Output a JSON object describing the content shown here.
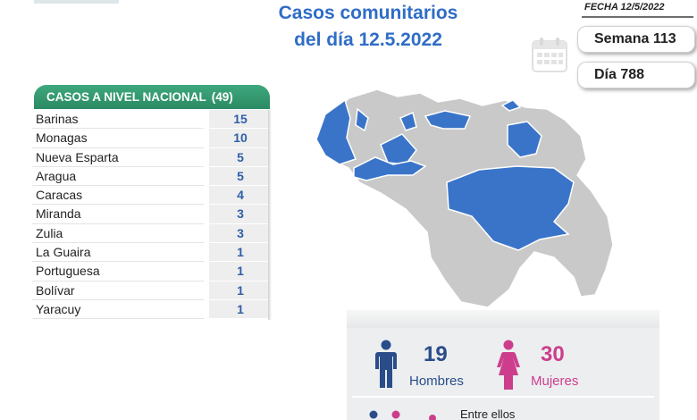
{
  "header": {
    "title_line1": "Casos comunitarios",
    "title_line2": "del día 12.5.2022",
    "fecha": "FECHA 12/5/2022",
    "semana": "Semana 113",
    "dia": "Día 788"
  },
  "table": {
    "header_label": "CASOS A NIVEL NACIONAL",
    "header_total": "(49)",
    "rows": [
      {
        "name": "Barinas",
        "value": "15"
      },
      {
        "name": "Monagas",
        "value": "10"
      },
      {
        "name": "Nueva Esparta",
        "value": "5"
      },
      {
        "name": "Aragua",
        "value": "5"
      },
      {
        "name": "Caracas",
        "value": "4"
      },
      {
        "name": "Miranda",
        "value": "3"
      },
      {
        "name": "Zulia",
        "value": "3"
      },
      {
        "name": "La Guaira",
        "value": "1"
      },
      {
        "name": "Portuguesa",
        "value": "1"
      },
      {
        "name": "Bolívar",
        "value": "1"
      },
      {
        "name": "Yaracuy",
        "value": "1"
      }
    ]
  },
  "stats": {
    "hombres_count": "19",
    "hombres_label": "Hombres",
    "mujeres_count": "30",
    "mujeres_label": "Mujeres",
    "entre_ellos": "Entre ellos"
  },
  "colors": {
    "title_blue": "#2f6dc7",
    "header_green": "#2b8a63",
    "value_blue": "#2f5ea8",
    "highlight_state": "#3a74c9",
    "base_state": "#c9c9c9",
    "men": "#2a4d8a",
    "women": "#cc3e8c"
  },
  "icons": {
    "calendar": "calendar-icon",
    "man": "man-icon",
    "woman": "woman-icon"
  }
}
